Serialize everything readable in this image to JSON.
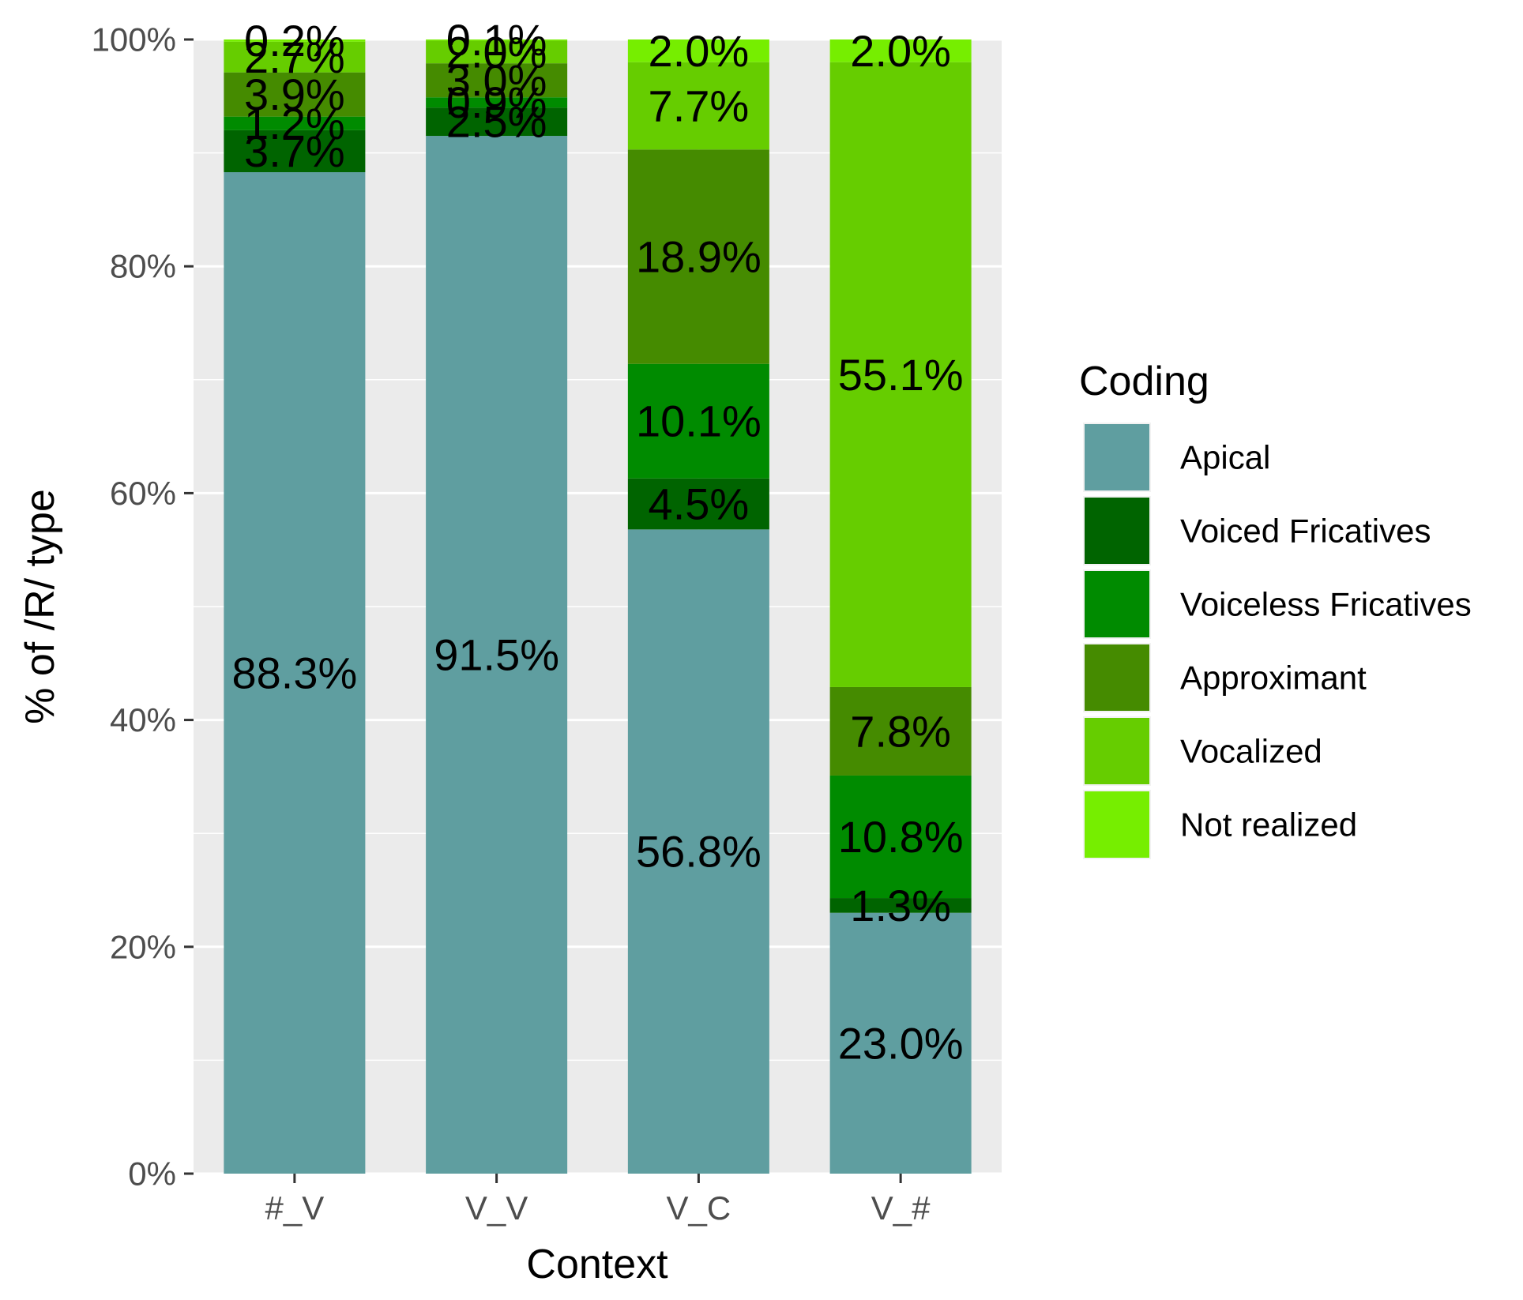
{
  "chart_data": {
    "type": "bar",
    "stacked": true,
    "title": "",
    "xlabel": "Context",
    "ylabel": "% of /R/ type",
    "ylim": [
      0,
      100
    ],
    "y_ticks": [
      0,
      20,
      40,
      60,
      80,
      100
    ],
    "y_tick_labels": [
      "0%",
      "20%",
      "40%",
      "60%",
      "80%",
      "100%"
    ],
    "grid": true,
    "legend_position": "right",
    "legend_title": "Coding",
    "categories": [
      "#_V",
      "V_V",
      "V_C",
      "V_#"
    ],
    "series": [
      {
        "name": "Apical",
        "color": "#5f9ea0",
        "values": [
          88.3,
          91.5,
          56.8,
          23.0
        ],
        "labels": [
          "88.3%",
          "91.5%",
          "56.8%",
          "23.0%"
        ]
      },
      {
        "name": "Voiced Fricatives",
        "color": "#006400",
        "values": [
          3.7,
          2.5,
          4.5,
          1.3
        ],
        "labels": [
          "3.7%",
          "2.5%",
          "4.5%",
          "1.3%"
        ]
      },
      {
        "name": "Voiceless Fricatives",
        "color": "#008b00",
        "values": [
          1.2,
          0.9,
          10.1,
          10.8
        ],
        "labels": [
          "1.2%",
          "0.9%",
          "10.1%",
          "10.8%"
        ]
      },
      {
        "name": "Approximant",
        "color": "#458b00",
        "values": [
          3.9,
          3.0,
          18.9,
          7.8
        ],
        "labels": [
          "3.9%",
          "3.0%",
          "18.9%",
          "7.8%"
        ]
      },
      {
        "name": "Vocalized",
        "color": "#66cd00",
        "values": [
          2.7,
          2.0,
          7.7,
          55.1
        ],
        "labels": [
          "2.7%",
          "2.0%",
          "7.7%",
          "55.1%"
        ]
      },
      {
        "name": "Not realized",
        "color": "#76ee00",
        "values": [
          0.2,
          0.1,
          2.0,
          2.0
        ],
        "labels": [
          "0.2%",
          "0.1%",
          "2.0%",
          "2.0%"
        ]
      }
    ]
  }
}
